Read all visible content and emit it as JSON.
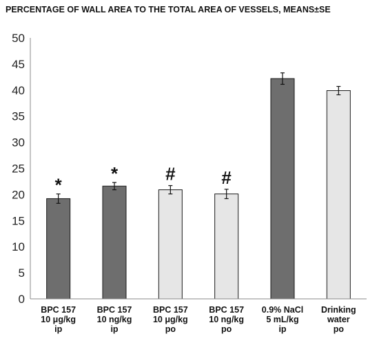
{
  "chart_data": {
    "type": "bar",
    "title": "PERCENTAGE OF WALL  AREA TO THE TOTAL AREA OF VESSELS, MEANS±SE",
    "ylim": [
      0,
      50
    ],
    "yticks": [
      0,
      5,
      10,
      15,
      20,
      25,
      30,
      35,
      40,
      45,
      50
    ],
    "grid": false,
    "categories": [
      [
        "BPC 157",
        "10 μg/kg",
        "ip"
      ],
      [
        "BPC 157",
        "10 ng/kg",
        "ip"
      ],
      [
        "BPC 157",
        "10 μg/kg",
        "po"
      ],
      [
        "BPC 157",
        "10 ng/kg",
        "po"
      ],
      [
        "0.9% NaCl",
        "5 mL/kg",
        "ip"
      ],
      [
        "Drinking",
        "water",
        "po"
      ]
    ],
    "values": [
      19.2,
      21.6,
      20.9,
      20.1,
      42.2,
      39.9
    ],
    "errors": [
      0.9,
      0.7,
      0.8,
      0.9,
      1.1,
      0.8
    ],
    "markers": [
      "*",
      "*",
      "#",
      "#",
      "",
      ""
    ],
    "colors": [
      "#6e6e6e",
      "#6e6e6e",
      "#e6e6e6",
      "#e6e6e6",
      "#6e6e6e",
      "#e6e6e6"
    ]
  }
}
